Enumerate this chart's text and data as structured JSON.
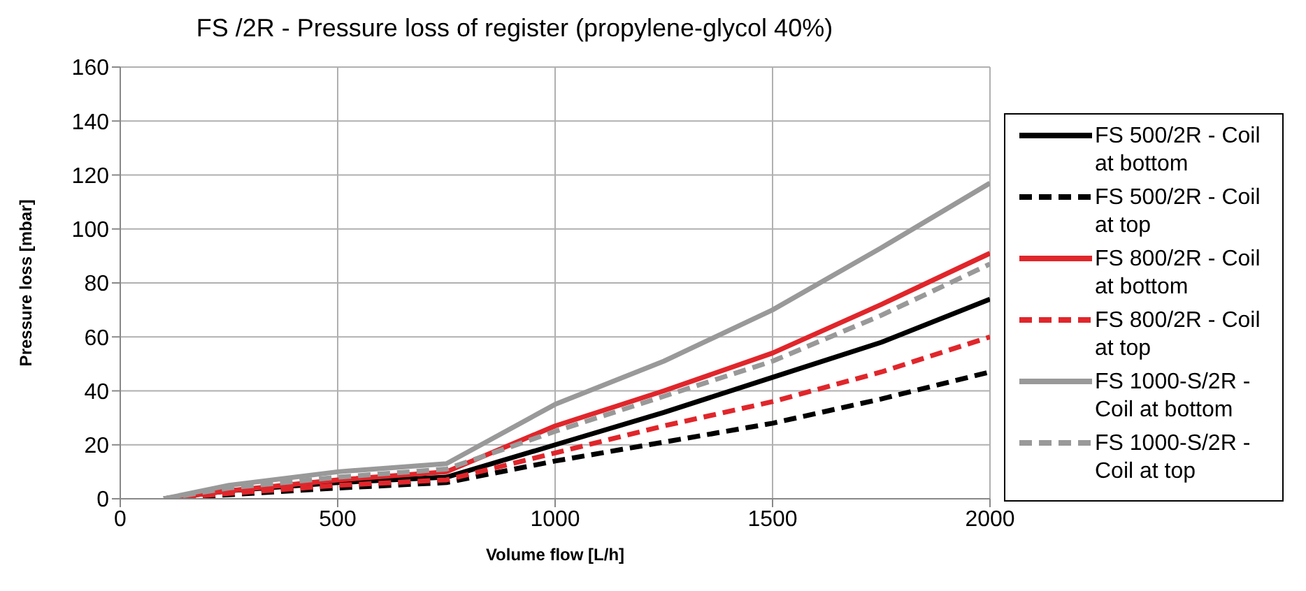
{
  "chart_data": {
    "type": "line",
    "title": "FS /2R - Pressure loss of register (propylene-glycol 40%)",
    "xlabel": "Volume flow [L/h]",
    "ylabel": "Pressure loss [mbar]",
    "x": [
      100,
      250,
      500,
      750,
      1000,
      1250,
      1500,
      1750,
      2000
    ],
    "series": [
      {
        "name": "FS 500/2R - Coil at bottom",
        "color": "#000000",
        "line_style": "solid",
        "values": [
          0,
          3,
          6,
          8,
          20,
          32,
          45,
          58,
          74
        ]
      },
      {
        "name": "FS 500/2R - Coil at top",
        "color": "#000000",
        "line_style": "dashed",
        "values": [
          0,
          1.5,
          4,
          6,
          14,
          21,
          28,
          37,
          47
        ]
      },
      {
        "name": "FS 800/2R - Coil at bottom",
        "color": "#e0262b",
        "line_style": "solid",
        "values": [
          0,
          3,
          7,
          10,
          27,
          40,
          54,
          72,
          91
        ]
      },
      {
        "name": "FS 800/2R - Coil at top",
        "color": "#e0262b",
        "line_style": "dashed",
        "values": [
          0,
          2,
          5,
          7,
          17,
          27,
          36,
          47,
          60
        ]
      },
      {
        "name": "FS 1000-S/2R - Coil at bottom",
        "color": "#999999",
        "line_style": "solid",
        "values": [
          0,
          5,
          10,
          13,
          35,
          51,
          70,
          93,
          117
        ]
      },
      {
        "name": "FS 1000-S/2R - Coil at top",
        "color": "#999999",
        "line_style": "dashed",
        "values": [
          0,
          4,
          8,
          11,
          25,
          38,
          51,
          68,
          87
        ]
      }
    ],
    "xlim": [
      0,
      2000
    ],
    "xticks": [
      0,
      500,
      1000,
      1500,
      2000
    ],
    "ylim": [
      0,
      160
    ],
    "yticks": [
      0,
      20,
      40,
      60,
      80,
      100,
      120,
      140,
      160
    ],
    "grid": true,
    "legend": "right",
    "marker": "none"
  }
}
